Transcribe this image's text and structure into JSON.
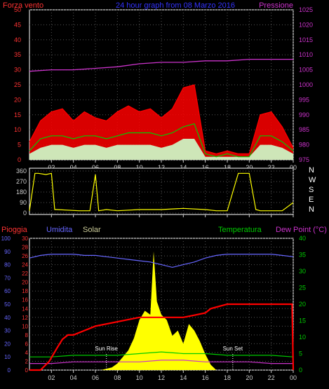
{
  "chart_data": [
    {
      "type": "line",
      "panel": "wind",
      "title": "24 hour graph from  08 Marzo 2016",
      "left_label": "Forza vento",
      "right_label": "Pressione",
      "ylim": [
        0,
        50
      ],
      "y_ticks": [
        "0",
        "5",
        "10",
        "15",
        "20",
        "25",
        "30",
        "35",
        "40",
        "45",
        "50"
      ],
      "y2lim": [
        975,
        1025
      ],
      "y2_ticks": [
        "975",
        "980",
        "985",
        "990",
        "995",
        "1000",
        "1005",
        "1010",
        "1015",
        "1020",
        "1025"
      ],
      "x_ticks": [
        "02",
        "04",
        "06",
        "08",
        "10",
        "12",
        "14",
        "16",
        "18",
        "20",
        "22",
        "00"
      ],
      "colors": {
        "gust": "#ff0000",
        "speed": "#00cc00",
        "avg": "#ccffcc",
        "pressure": "#cc33cc",
        "axis_left": "#ff3333",
        "axis_right": "#cc33cc",
        "title": "#3333ff"
      },
      "series": [
        {
          "key": "gust",
          "x": [
            0,
            1,
            2,
            3,
            4,
            5,
            6,
            7,
            8,
            9,
            10,
            11,
            12,
            13,
            14,
            15,
            16,
            17,
            18,
            19,
            20,
            21,
            22,
            23,
            24
          ],
          "values": [
            6,
            13,
            16,
            17,
            13,
            16,
            14,
            13,
            16,
            18,
            16,
            17,
            14,
            17,
            24,
            25,
            3,
            2,
            3,
            2,
            2,
            15,
            16,
            11,
            4
          ]
        },
        {
          "key": "speed",
          "x": [
            0,
            1,
            2,
            3,
            4,
            5,
            6,
            7,
            8,
            9,
            10,
            11,
            12,
            13,
            14,
            15,
            16,
            17,
            18,
            19,
            20,
            21,
            22,
            23,
            24
          ],
          "values": [
            3,
            7,
            8,
            8,
            7,
            8,
            8,
            7,
            8,
            9,
            9,
            9,
            8,
            9,
            11,
            12,
            2,
            1,
            2,
            1,
            1,
            8,
            8,
            6,
            3
          ]
        },
        {
          "key": "avg",
          "x": [
            0,
            1,
            2,
            3,
            4,
            5,
            6,
            7,
            8,
            9,
            10,
            11,
            12,
            13,
            14,
            15,
            16,
            17,
            18,
            19,
            20,
            21,
            22,
            23,
            24
          ],
          "values": [
            2,
            4,
            5,
            5,
            4,
            5,
            5,
            4,
            5,
            5,
            5,
            5,
            4,
            5,
            7,
            7,
            1,
            1,
            1,
            1,
            1,
            5,
            5,
            4,
            2
          ]
        },
        {
          "key": "pressure",
          "axis": "right",
          "x": [
            0,
            2,
            4,
            6,
            8,
            10,
            12,
            14,
            16,
            18,
            20,
            22,
            24
          ],
          "values": [
            1004.5,
            1005,
            1005,
            1005.5,
            1006,
            1007,
            1007.5,
            1007.5,
            1008,
            1008,
            1008.5,
            1008.5,
            1008.5
          ]
        }
      ]
    },
    {
      "type": "line",
      "panel": "direction",
      "ylim": [
        0,
        360
      ],
      "y_ticks": [
        "0",
        "90",
        "180",
        "270",
        "360"
      ],
      "right_labels": [
        "N",
        "W",
        "S",
        "E",
        "N"
      ],
      "color": "#ffff00",
      "x": [
        0,
        0.5,
        0.8,
        1.5,
        2,
        2.3,
        2.5,
        4.5,
        5.5,
        6,
        6.3,
        7,
        8,
        10,
        12,
        14,
        16,
        17,
        18,
        19,
        20,
        20.6,
        21,
        22,
        23,
        24
      ],
      "values": [
        20,
        340,
        340,
        330,
        340,
        30,
        30,
        20,
        20,
        330,
        20,
        30,
        20,
        30,
        30,
        40,
        30,
        20,
        20,
        340,
        340,
        30,
        20,
        20,
        20,
        90
      ]
    },
    {
      "type": "line",
      "panel": "weather",
      "left_label": "Pioggia",
      "label_humidity": "Umidita",
      "label_solar": "Solar",
      "label_temp": "Temperatura",
      "label_dew": "Dew Point (°C)",
      "annotations": [
        "Sun Rise",
        "Sun Set"
      ],
      "sunrise_x": 7,
      "sunset_x": 18.5,
      "y_humidity_ticks": [
        "0",
        "10",
        "20",
        "30",
        "40",
        "50",
        "60",
        "70",
        "80",
        "90",
        "100"
      ],
      "y_rain_ticks": [
        "0",
        "2",
        "4",
        "6",
        "8",
        "10",
        "12",
        "14",
        "16",
        "18",
        "20",
        "22",
        "24",
        "26",
        "28",
        "30"
      ],
      "y_temp_ticks": [
        "0",
        "5",
        "10",
        "15",
        "20",
        "25",
        "30",
        "35",
        "40"
      ],
      "rain_lim": [
        0,
        30
      ],
      "humidity_lim": [
        0,
        100
      ],
      "temp_lim": [
        0,
        40
      ],
      "x_ticks": [
        "02",
        "04",
        "06",
        "08",
        "10",
        "12",
        "14",
        "16",
        "18",
        "20",
        "22",
        "00"
      ],
      "colors": {
        "rain": "#ff0000",
        "humidity": "#6666ff",
        "solar": "#ffff00",
        "temp": "#00cc00",
        "dew": "#cc33cc",
        "axis_rain": "#ff3333",
        "axis_humidity": "#6666ff",
        "axis_temp": "#00cc00",
        "solar_label": "#cccc99"
      },
      "rain": {
        "x": [
          0,
          1,
          1.8,
          2.5,
          3,
          3.5,
          4,
          5,
          6,
          8,
          10,
          12,
          14,
          15,
          16,
          16.5,
          18,
          19,
          20,
          21,
          22,
          23,
          23.9,
          24
        ],
        "values": [
          0,
          0,
          2,
          5,
          7,
          8,
          8,
          9,
          10,
          11,
          12,
          12,
          12,
          12.5,
          13,
          14,
          15,
          15,
          15,
          15,
          15,
          15,
          15,
          0
        ]
      },
      "humidity": {
        "x": [
          0,
          1,
          2,
          3,
          4,
          5,
          6,
          7,
          8,
          9,
          10,
          11,
          12,
          13,
          14,
          15,
          16,
          17,
          18,
          19,
          20,
          21,
          22,
          23,
          24
        ],
        "values": [
          85,
          87,
          88,
          88,
          88,
          87,
          87,
          86,
          85,
          84,
          83,
          82,
          80,
          78,
          80,
          82,
          85,
          87,
          88,
          88,
          88,
          88,
          88,
          87,
          86
        ]
      },
      "temperature": {
        "x": [
          0,
          2,
          4,
          6,
          8,
          10,
          12,
          14,
          16,
          18,
          20,
          22,
          24
        ],
        "values": [
          4,
          4,
          4.5,
          4.5,
          4.5,
          5,
          5.5,
          5,
          5,
          4.5,
          4.5,
          4.5,
          4
        ]
      },
      "dew": {
        "x": [
          0,
          2,
          4,
          6,
          8,
          10,
          12,
          14,
          16,
          18,
          20,
          22,
          24
        ],
        "values": [
          2,
          2,
          2.5,
          2.5,
          2.5,
          2.5,
          3,
          3,
          2.5,
          2.5,
          2.5,
          2,
          2
        ]
      },
      "solar": {
        "x": [
          6.5,
          7.5,
          8,
          8.5,
          9,
          9.5,
          10,
          10.5,
          11,
          11.3,
          11.6,
          12,
          12.5,
          13,
          13.5,
          14,
          14.5,
          15,
          15.5,
          16,
          16.5,
          17
        ],
        "values": [
          0,
          20,
          50,
          100,
          150,
          240,
          380,
          450,
          420,
          900,
          520,
          420,
          380,
          260,
          300,
          200,
          350,
          300,
          220,
          120,
          40,
          0
        ]
      },
      "solar_lim": [
        0,
        1000
      ]
    }
  ]
}
